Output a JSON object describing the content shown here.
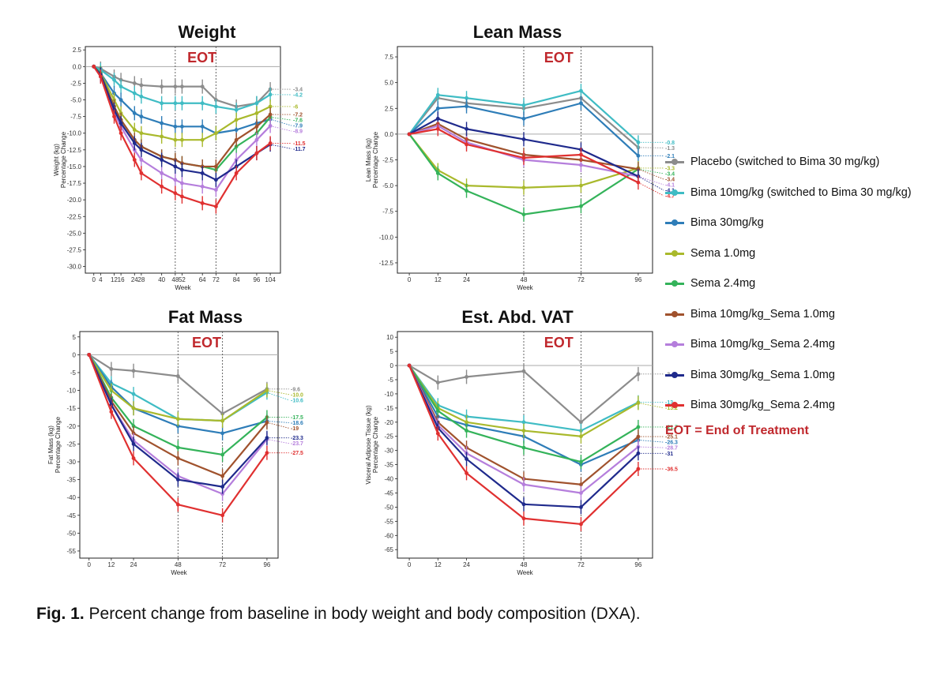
{
  "caption": {
    "label": "Fig. 1.",
    "text": "Percent change from baseline in body weight and body composition (DXA)."
  },
  "legend": {
    "items": [
      {
        "name": "Placebo (switched to Bima 30 mg/kg)",
        "color": "#8c8c8c"
      },
      {
        "name": "Bima 10mg/kg (switched to Bima 30 mg/kg)",
        "color": "#3fbcc4"
      },
      {
        "name": "Bima 30mg/kg",
        "color": "#2e7db8"
      },
      {
        "name": "Sema 1.0mg",
        "color": "#a9b92c"
      },
      {
        "name": "Sema 2.4mg",
        "color": "#34b35a"
      },
      {
        "name": "Bima 10mg/kg_Sema 1.0mg",
        "color": "#a0522d"
      },
      {
        "name": "Bima 10mg/kg_Sema 2.4mg",
        "color": "#b57edc"
      },
      {
        "name": "Bima 30mg/kg_Sema 1.0mg",
        "color": "#1f2a8c"
      },
      {
        "name": "Bima 30mg/kg_Sema 2.4mg",
        "color": "#e03030"
      }
    ],
    "note": "EOT = End of Treatment"
  },
  "chart_data": [
    {
      "type": "line",
      "title": "Weight",
      "annotation": "EOT",
      "eot_weeks": [
        48,
        72
      ],
      "xlabel": "Week",
      "ylabel": [
        "Weight (kg)",
        "Percentage Change"
      ],
      "xticks": [
        0,
        4,
        12,
        16,
        24,
        28,
        40,
        48,
        52,
        64,
        72,
        84,
        96,
        104
      ],
      "xtick_labels": [
        "0",
        "4",
        "12",
        "16",
        "24",
        "28",
        "40",
        "48",
        "52",
        "64",
        "72",
        "84",
        "96",
        "104"
      ],
      "yticks": [
        2.5,
        0.0,
        -2.5,
        -5.0,
        -7.5,
        -10.0,
        -12.5,
        -15.0,
        -17.5,
        -20.0,
        -22.5,
        -25.0,
        -27.5,
        -30.0
      ],
      "ytick_labels": [
        "2.5",
        "0.0",
        "-2.5",
        "-5.0",
        "-7.5",
        "-10.0",
        "-12.5",
        "-15.0",
        "-17.5",
        "-20.0",
        "-22.5",
        "-25.0",
        "-27.5",
        "-30.0"
      ],
      "xlim": [
        -5,
        110
      ],
      "ylim": [
        -31,
        3
      ],
      "x": [
        0,
        4,
        12,
        16,
        24,
        28,
        40,
        48,
        52,
        64,
        72,
        84,
        96,
        104
      ],
      "series": [
        {
          "name": "Placebo (switched to Bima 30 mg/kg)",
          "color": "#8c8c8c",
          "values": [
            0,
            -0.3,
            -1.5,
            -2,
            -2.5,
            -2.8,
            -3,
            -3,
            -3,
            -3,
            -5,
            -6,
            -5.5,
            -3.4
          ],
          "end_label": "-3.4"
        },
        {
          "name": "Bima 10mg/kg (switched to Bima 30 mg/kg)",
          "color": "#3fbcc4",
          "values": [
            0,
            -0.5,
            -2,
            -3,
            -4,
            -4.5,
            -5.5,
            -5.5,
            -5.5,
            -5.5,
            -6,
            -6.5,
            -5.5,
            -4.2
          ],
          "end_label": "-4.2"
        },
        {
          "name": "Bima 30mg/kg",
          "color": "#2e7db8",
          "values": [
            0,
            -1,
            -4,
            -5,
            -7,
            -7.5,
            -8.5,
            -9,
            -9,
            -9,
            -10,
            -9.5,
            -8.5,
            -7.9
          ],
          "end_label": "-7.9"
        },
        {
          "name": "Sema 1.0mg",
          "color": "#a9b92c",
          "values": [
            0,
            -1,
            -5,
            -7,
            -9.5,
            -10,
            -10.5,
            -11,
            -11,
            -11,
            -10,
            -8,
            -7,
            -6
          ],
          "end_label": "-6"
        },
        {
          "name": "Sema 2.4mg",
          "color": "#34b35a",
          "values": [
            0,
            -1,
            -6,
            -8,
            -11,
            -12,
            -13.5,
            -14,
            -14.5,
            -15,
            -15.5,
            -12,
            -10,
            -7.6
          ],
          "end_label": "-7.6"
        },
        {
          "name": "Bima 10mg/kg_Sema 1.0mg",
          "color": "#a0522d",
          "values": [
            0,
            -1.2,
            -6,
            -8,
            -11,
            -12,
            -13.5,
            -14,
            -14.5,
            -15,
            -15,
            -11,
            -9,
            -7.2
          ],
          "end_label": "-7.2"
        },
        {
          "name": "Bima 10mg/kg_Sema 2.4mg",
          "color": "#b57edc",
          "values": [
            0,
            -1.5,
            -7,
            -9,
            -12.5,
            -14,
            -16,
            -17,
            -17.5,
            -18,
            -18.5,
            -14,
            -11,
            -8.9
          ],
          "end_label": "-8.9"
        },
        {
          "name": "Bima 30mg/kg_Sema 1.0mg",
          "color": "#1f2a8c",
          "values": [
            0,
            -1.2,
            -6.5,
            -8.5,
            -11.5,
            -12.5,
            -14,
            -15,
            -15.5,
            -16,
            -17,
            -15,
            -13,
            -11.7
          ],
          "end_label": "-11.7"
        },
        {
          "name": "Bima 30mg/kg_Sema 2.4mg",
          "color": "#e03030",
          "values": [
            0,
            -1.5,
            -7.5,
            -10,
            -14,
            -16,
            -18,
            -19,
            -19.5,
            -20.5,
            -21,
            -16,
            -13,
            -11.5
          ],
          "end_label": "-11.5"
        }
      ]
    },
    {
      "type": "line",
      "title": "Lean Mass",
      "annotation": "EOT",
      "eot_weeks": [
        48,
        72
      ],
      "xlabel": "Week",
      "ylabel": [
        "Lean Mass (kg)",
        "Percentage Change"
      ],
      "xticks": [
        0,
        12,
        24,
        48,
        72,
        96
      ],
      "xtick_labels": [
        "0",
        "12",
        "24",
        "48",
        "72",
        "96"
      ],
      "yticks": [
        7.5,
        5.0,
        2.5,
        0.0,
        -2.5,
        -5.0,
        -7.5,
        -10.0,
        -12.5
      ],
      "ytick_labels": [
        "7.5",
        "5.0",
        "2.5",
        "0.0",
        "-2.5",
        "-5.0",
        "-7.5",
        "-10.0",
        "-12.5"
      ],
      "xlim": [
        -5,
        102
      ],
      "ylim": [
        -13.5,
        8.5
      ],
      "x": [
        0,
        12,
        24,
        48,
        72,
        96
      ],
      "series": [
        {
          "name": "Placebo (switched to Bima 30 mg/kg)",
          "color": "#8c8c8c",
          "values": [
            0,
            3.5,
            3,
            2.5,
            3.5,
            -1.3
          ],
          "end_label": "-1.3"
        },
        {
          "name": "Bima 10mg/kg (switched to Bima 30 mg/kg)",
          "color": "#3fbcc4",
          "values": [
            0,
            3.8,
            3.5,
            2.8,
            4.2,
            -0.8
          ],
          "end_label": "-0.8"
        },
        {
          "name": "Bima 30mg/kg",
          "color": "#2e7db8",
          "values": [
            0,
            2.5,
            2.7,
            1.5,
            3,
            -2.1
          ],
          "end_label": "-2.1"
        },
        {
          "name": "Sema 1.0mg",
          "color": "#a9b92c",
          "values": [
            0,
            -3.5,
            -5,
            -5.2,
            -5,
            -3.3
          ],
          "end_label": "-3.3"
        },
        {
          "name": "Sema 2.4mg",
          "color": "#34b35a",
          "values": [
            0,
            -3.8,
            -5.5,
            -7.8,
            -7,
            -3.4
          ],
          "end_label": "-3.4"
        },
        {
          "name": "Bima 10mg/kg_Sema 1.0mg",
          "color": "#a0522d",
          "values": [
            0,
            1,
            -0.5,
            -2,
            -2.5,
            -3.4
          ],
          "end_label": "-3.4"
        },
        {
          "name": "Bima 10mg/kg_Sema 2.4mg",
          "color": "#b57edc",
          "values": [
            0,
            0.8,
            -0.8,
            -2.5,
            -3,
            -4.1
          ],
          "end_label": "-4.1"
        },
        {
          "name": "Bima 30mg/kg_Sema 1.0mg",
          "color": "#1f2a8c",
          "values": [
            0,
            1.5,
            0.5,
            -0.5,
            -1.5,
            -4.1
          ],
          "end_label": "-4.1"
        },
        {
          "name": "Bima 30mg/kg_Sema 2.4mg",
          "color": "#e03030",
          "values": [
            0,
            0.5,
            -1,
            -2.3,
            -2,
            -4.7
          ],
          "end_label": "-4.7"
        }
      ]
    },
    {
      "type": "line",
      "title": "Fat Mass",
      "annotation": "EOT",
      "eot_weeks": [
        48,
        72
      ],
      "xlabel": "Week",
      "ylabel": [
        "Fat Mass (kg)",
        "Percentage Change"
      ],
      "xticks": [
        0,
        12,
        24,
        48,
        72,
        96
      ],
      "xtick_labels": [
        "0",
        "12",
        "24",
        "48",
        "72",
        "96"
      ],
      "yticks": [
        5,
        0,
        -5,
        -10,
        -15,
        -20,
        -25,
        -30,
        -35,
        -40,
        -45,
        -50,
        -55
      ],
      "ytick_labels": [
        "5",
        "0",
        "-5",
        "-10",
        "-15",
        "-20",
        "-25",
        "-30",
        "-35",
        "-40",
        "-45",
        "-50",
        "-55"
      ],
      "xlim": [
        -5,
        102
      ],
      "ylim": [
        -57,
        6.5
      ],
      "x": [
        0,
        12,
        24,
        48,
        72,
        96
      ],
      "series": [
        {
          "name": "Placebo (switched to Bima 30 mg/kg)",
          "color": "#8c8c8c",
          "values": [
            0,
            -4,
            -4.5,
            -6,
            -16.5,
            -9.6
          ],
          "end_label": "-9.6"
        },
        {
          "name": "Bima 10mg/kg (switched to Bima 30 mg/kg)",
          "color": "#3fbcc4",
          "values": [
            0,
            -8,
            -11,
            -18,
            -18.5,
            -10.6
          ],
          "end_label": "-10.6"
        },
        {
          "name": "Bima 30mg/kg",
          "color": "#2e7db8",
          "values": [
            0,
            -9,
            -15,
            -20,
            -22,
            -18.6
          ],
          "end_label": "-18.6"
        },
        {
          "name": "Sema 1.0mg",
          "color": "#a9b92c",
          "values": [
            0,
            -10,
            -15,
            -18,
            -18.5,
            -10
          ],
          "end_label": "-10.0"
        },
        {
          "name": "Sema 2.4mg",
          "color": "#34b35a",
          "values": [
            0,
            -12,
            -20,
            -26,
            -28,
            -17.5
          ],
          "end_label": "-17.5"
        },
        {
          "name": "Bima 10mg/kg_Sema 1.0mg",
          "color": "#a0522d",
          "values": [
            0,
            -13,
            -22,
            -29,
            -34,
            -19
          ],
          "end_label": "-19"
        },
        {
          "name": "Bima 10mg/kg_Sema 2.4mg",
          "color": "#b57edc",
          "values": [
            0,
            -14,
            -24,
            -34,
            -39,
            -23.7
          ],
          "end_label": "-23.7"
        },
        {
          "name": "Bima 30mg/kg_Sema 1.0mg",
          "color": "#1f2a8c",
          "values": [
            0,
            -14,
            -25,
            -35,
            -37,
            -23.3
          ],
          "end_label": "-23.3"
        },
        {
          "name": "Bima 30mg/kg_Sema 2.4mg",
          "color": "#e03030",
          "values": [
            0,
            -16,
            -29,
            -42,
            -45,
            -27.5
          ],
          "end_label": "-27.5"
        }
      ]
    },
    {
      "type": "line",
      "title": "Est. Abd. VAT",
      "annotation": "EOT",
      "eot_weeks": [
        48,
        72
      ],
      "xlabel": "Week",
      "ylabel": [
        "Visceral Adipose Tissue (kg)",
        "Percentage Change"
      ],
      "xticks": [
        0,
        12,
        24,
        48,
        72,
        96
      ],
      "xtick_labels": [
        "0",
        "12",
        "24",
        "48",
        "72",
        "96"
      ],
      "yticks": [
        10,
        5,
        0,
        -5,
        -10,
        -15,
        -20,
        -25,
        -30,
        -35,
        -40,
        -45,
        -50,
        -55,
        -60,
        -65
      ],
      "ytick_labels": [
        "10",
        "5",
        "0",
        "-5",
        "-10",
        "-15",
        "-20",
        "-25",
        "-30",
        "-35",
        "-40",
        "-45",
        "-50",
        "-55",
        "-60",
        "-65"
      ],
      "xlim": [
        -5,
        102
      ],
      "ylim": [
        -68,
        12
      ],
      "x": [
        0,
        12,
        24,
        48,
        72,
        96
      ],
      "series": [
        {
          "name": "Placebo (switched to Bima 30 mg/kg)",
          "color": "#8c8c8c",
          "values": [
            0,
            -6,
            -4,
            -2,
            -20,
            -3
          ],
          "end_label": "-3"
        },
        {
          "name": "Bima 10mg/kg (switched to Bima 30 mg/kg)",
          "color": "#3fbcc4",
          "values": [
            0,
            -14,
            -18,
            -20,
            -23,
            -13
          ],
          "end_label": "-13"
        },
        {
          "name": "Bima 30mg/kg",
          "color": "#2e7db8",
          "values": [
            0,
            -18,
            -21,
            -25,
            -35,
            -26.3
          ],
          "end_label": "-26.3"
        },
        {
          "name": "Sema 1.0mg",
          "color": "#a9b92c",
          "values": [
            0,
            -15,
            -20,
            -23,
            -25,
            -13.2
          ],
          "end_label": "-13.2"
        },
        {
          "name": "Sema 2.4mg",
          "color": "#34b35a",
          "values": [
            0,
            -16,
            -23,
            -29,
            -34,
            -21.7
          ],
          "end_label": "-21.7"
        },
        {
          "name": "Bima 10mg/kg_Sema 1.0mg",
          "color": "#a0522d",
          "values": [
            0,
            -20,
            -29,
            -40,
            -42,
            -25.1
          ],
          "end_label": "-25.1"
        },
        {
          "name": "Bima 10mg/kg_Sema 2.4mg",
          "color": "#b57edc",
          "values": [
            0,
            -21,
            -31,
            -42,
            -45,
            -28.7
          ],
          "end_label": "-28.7"
        },
        {
          "name": "Bima 30mg/kg_Sema 1.0mg",
          "color": "#1f2a8c",
          "values": [
            0,
            -22,
            -33,
            -49,
            -50,
            -31
          ],
          "end_label": "-31"
        },
        {
          "name": "Bima 30mg/kg_Sema 2.4mg",
          "color": "#e03030",
          "values": [
            0,
            -24,
            -38,
            -54,
            -56,
            -36.5
          ],
          "end_label": "-36.5"
        }
      ]
    }
  ]
}
